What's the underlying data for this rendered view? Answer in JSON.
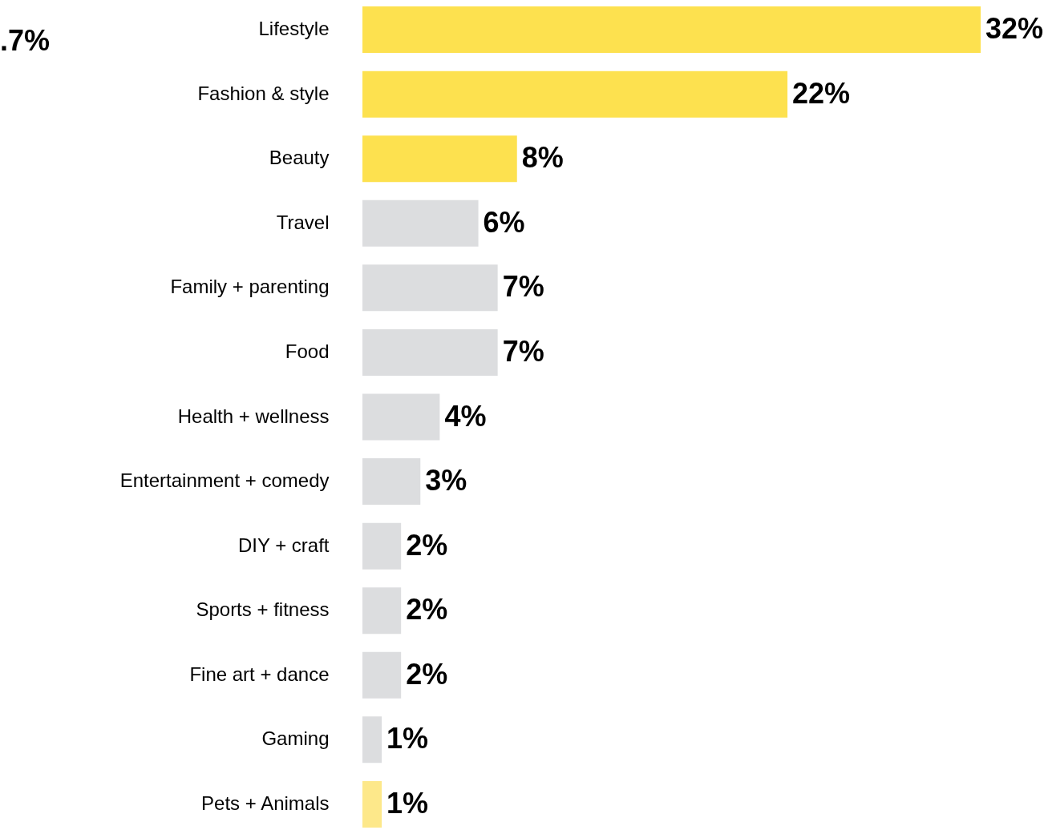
{
  "chart_data": {
    "type": "bar",
    "orientation": "horizontal",
    "categories": [
      "Lifestyle",
      "Fashion & style",
      "Beauty",
      "Travel",
      "Family + parenting",
      "Food",
      "Health + wellness",
      "Entertainment + comedy",
      "DIY + craft",
      "Sports + fitness",
      "Fine art + dance",
      "Gaming",
      "Pets + Animals"
    ],
    "values": [
      32,
      22,
      8,
      6,
      7,
      7,
      4,
      3,
      2,
      2,
      2,
      1,
      1
    ],
    "colors": [
      "#fde14f",
      "#fde14f",
      "#fde14f",
      "#dcdddf",
      "#dcdddf",
      "#dcdddf",
      "#dcdddf",
      "#dcdddf",
      "#dcdddf",
      "#dcdddf",
      "#dcdddf",
      "#dcdddf",
      "#fde88a"
    ],
    "value_labels": [
      "32%",
      "22%",
      "8%",
      "6%",
      "7%",
      "7%",
      "4%",
      "3%",
      "2%",
      "2%",
      "2%",
      "1%",
      "1%"
    ],
    "annotations": [
      ".7%"
    ]
  }
}
